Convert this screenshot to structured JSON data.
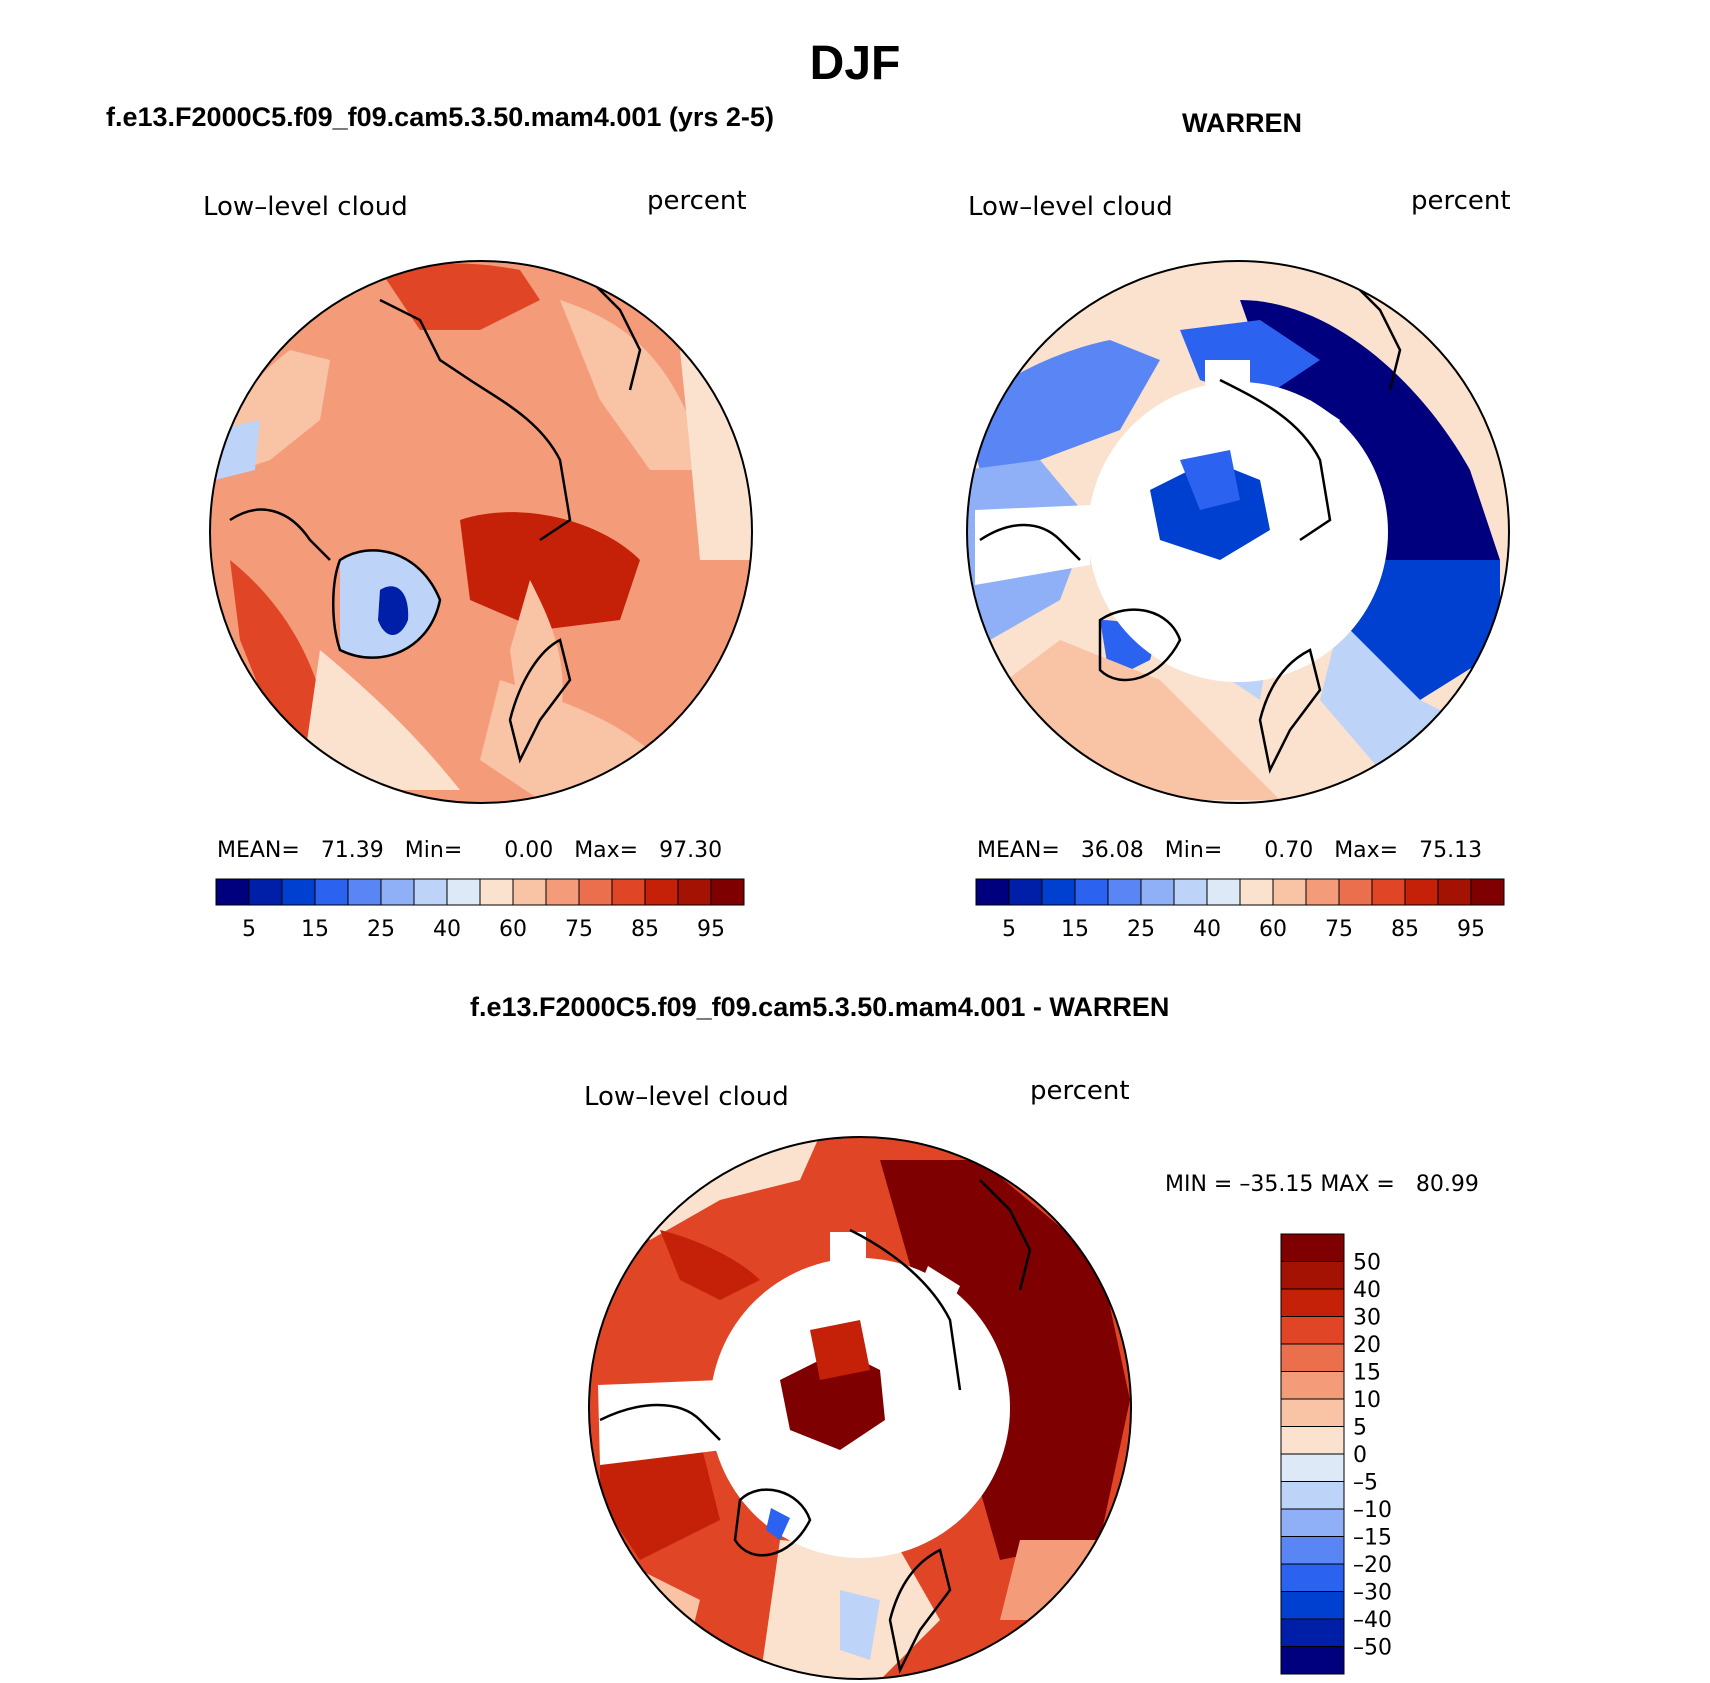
{
  "main_title": "DJF",
  "panels": {
    "left": {
      "title": "f.e13.F2000C5.f09_f09.cam5.3.50.mam4.001 (yrs 2-5)",
      "variable": "Low–level cloud",
      "units": "percent",
      "stats": {
        "mean_label": "MEAN=",
        "mean": "71.39",
        "min_label": "Min=",
        "min": "0.00",
        "max_label": "Max=",
        "max": "97.30"
      }
    },
    "right": {
      "title": "WARREN",
      "variable": "Low–level cloud",
      "units": "percent",
      "stats": {
        "mean_label": "MEAN=",
        "mean": "36.08",
        "min_label": "Min=",
        "min": "0.70",
        "max_label": "Max=",
        "max": "75.13"
      }
    },
    "diff": {
      "title": "f.e13.F2000C5.f09_f09.cam5.3.50.mam4.001 - WARREN",
      "variable": "Low–level cloud",
      "units": "percent",
      "minmax": "MIN = –35.15 MAX =   80.99"
    }
  },
  "colorbar_abs": {
    "colors": [
      "#00007f",
      "#001fa8",
      "#0040d0",
      "#2b62f0",
      "#5a86f5",
      "#8fb0f7",
      "#bdd3f8",
      "#dde9f7",
      "#fbe2cf",
      "#f9c3a5",
      "#f49c7a",
      "#ec6f4d",
      "#e04526",
      "#c52008",
      "#a31202",
      "#7f0000"
    ],
    "labels": [
      "5",
      "15",
      "25",
      "40",
      "60",
      "75",
      "85",
      "95"
    ]
  },
  "colorbar_diff": {
    "colors": [
      "#00007f",
      "#001fa8",
      "#0040d0",
      "#2b62f0",
      "#5a86f5",
      "#8fb0f7",
      "#bdd3f8",
      "#dde9f7",
      "#fbe2cf",
      "#f9c3a5",
      "#f49c7a",
      "#ec6f4d",
      "#e04526",
      "#c52008",
      "#a31202",
      "#7f0000"
    ],
    "labels": [
      "50",
      "40",
      "30",
      "20",
      "15",
      "10",
      "5",
      "0",
      "–5",
      "–10",
      "–15",
      "–20",
      "–30",
      "–40",
      "–50"
    ]
  }
}
